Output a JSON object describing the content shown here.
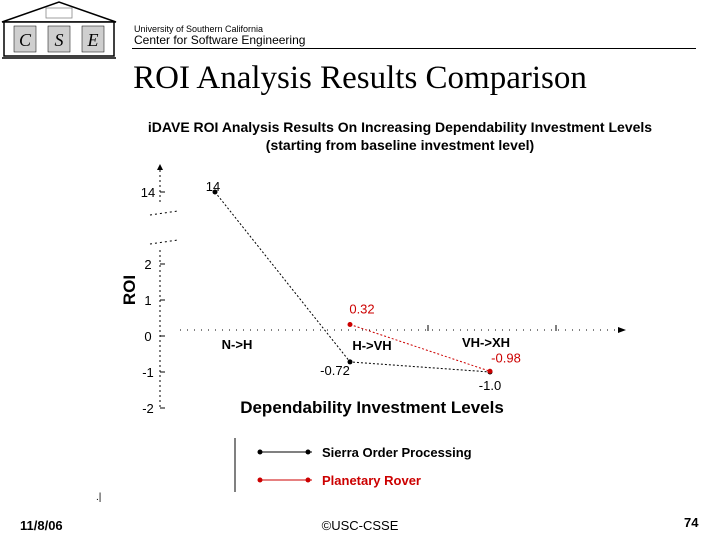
{
  "header": {
    "logo_letters": [
      "C",
      "S",
      "E"
    ],
    "university": "University of Southern California",
    "center": "Center for Software  Engineering"
  },
  "slide": {
    "title": "ROI Analysis Results Comparison"
  },
  "footer": {
    "date": "11/8/06",
    "copyright": "©USC-CSSE",
    "page": "74"
  },
  "chart_data": {
    "type": "line",
    "title_line1": "iDAVE ROI Analysis Results On Increasing Dependability Investment Levels",
    "title_line2": "(starting from baseline investment level)",
    "xlabel": "Dependability Investment Levels",
    "ylabel": "ROI",
    "categories": [
      "N->H",
      "H->VH",
      "VH->XH"
    ],
    "y_ticks": [
      "14",
      "2",
      "1",
      "0",
      "-1",
      "-2"
    ],
    "axis_break": true,
    "series": [
      {
        "name": "Sierra Order Processing",
        "color": "#000000",
        "values": [
          14,
          -0.72,
          -1.0
        ],
        "labels": [
          "14",
          "-0.72",
          "-1.0"
        ]
      },
      {
        "name": "Planetary Rover",
        "color": "#cc0000",
        "values": [
          null,
          0.32,
          -0.98
        ],
        "labels": [
          "",
          "0.32",
          "-0.98"
        ]
      }
    ],
    "legend_placement": "bottom"
  }
}
